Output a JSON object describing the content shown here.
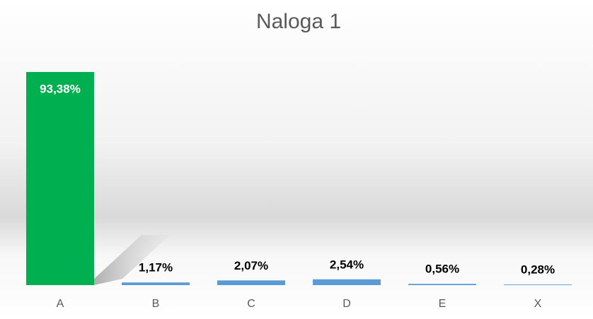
{
  "chart_data": {
    "type": "bar",
    "title": "Naloga 1",
    "categories": [
      "A",
      "B",
      "C",
      "D",
      "E",
      "X"
    ],
    "values": [
      93.38,
      1.17,
      2.07,
      2.54,
      0.56,
      0.28
    ],
    "value_labels": [
      "93,38%",
      "1,17%",
      "2,07%",
      "2,54%",
      "0,56%",
      "0,28%"
    ],
    "colors": [
      "#00b050",
      "#5b9bd5",
      "#5b9bd5",
      "#5b9bd5",
      "#5b9bd5",
      "#5b9bd5"
    ]
  }
}
